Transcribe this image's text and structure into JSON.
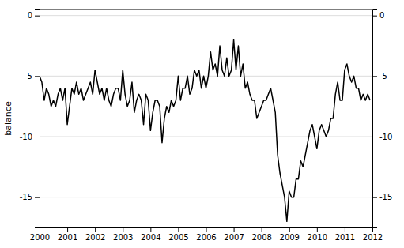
{
  "chart_data": {
    "type": "line",
    "ylabel": "balance",
    "color": "#000000",
    "xlim": [
      2000.0,
      2012.0
    ],
    "ylim": [
      -17.5,
      0.5
    ],
    "xticks": [
      2000,
      2001,
      2002,
      2003,
      2004,
      2005,
      2006,
      2007,
      2008,
      2009,
      2010,
      2011,
      2012
    ],
    "yticks": [
      0,
      -5,
      -10,
      -15
    ],
    "y2lim": [
      -17.5,
      0.5
    ],
    "y2ticks": [
      0,
      -5,
      -10,
      -15
    ],
    "grid": true,
    "x": [
      2000.0,
      2000.083,
      2000.167,
      2000.25,
      2000.333,
      2000.417,
      2000.5,
      2000.583,
      2000.667,
      2000.75,
      2000.833,
      2000.917,
      2001.0,
      2001.083,
      2001.167,
      2001.25,
      2001.333,
      2001.417,
      2001.5,
      2001.583,
      2001.667,
      2001.75,
      2001.833,
      2001.917,
      2002.0,
      2002.083,
      2002.167,
      2002.25,
      2002.333,
      2002.417,
      2002.5,
      2002.583,
      2002.667,
      2002.75,
      2002.833,
      2002.917,
      2003.0,
      2003.083,
      2003.167,
      2003.25,
      2003.333,
      2003.417,
      2003.5,
      2003.583,
      2003.667,
      2003.75,
      2003.833,
      2003.917,
      2004.0,
      2004.083,
      2004.167,
      2004.25,
      2004.333,
      2004.417,
      2004.5,
      2004.583,
      2004.667,
      2004.75,
      2004.833,
      2004.917,
      2005.0,
      2005.083,
      2005.167,
      2005.25,
      2005.333,
      2005.417,
      2005.5,
      2005.583,
      2005.667,
      2005.75,
      2005.833,
      2005.917,
      2006.0,
      2006.083,
      2006.167,
      2006.25,
      2006.333,
      2006.417,
      2006.5,
      2006.583,
      2006.667,
      2006.75,
      2006.833,
      2006.917,
      2007.0,
      2007.083,
      2007.167,
      2007.25,
      2007.333,
      2007.417,
      2007.5,
      2007.583,
      2007.667,
      2007.75,
      2007.833,
      2007.917,
      2008.0,
      2008.083,
      2008.167,
      2008.25,
      2008.333,
      2008.417,
      2008.5,
      2008.583,
      2008.667,
      2008.75,
      2008.833,
      2008.917,
      2009.0,
      2009.083,
      2009.167,
      2009.25,
      2009.333,
      2009.417,
      2009.5,
      2009.583,
      2009.667,
      2009.75,
      2009.833,
      2009.917,
      2010.0,
      2010.083,
      2010.167,
      2010.25,
      2010.333,
      2010.417,
      2010.5,
      2010.583,
      2010.667,
      2010.75,
      2010.833,
      2010.917,
      2011.0,
      2011.083,
      2011.167,
      2011.25,
      2011.333,
      2011.417,
      2011.5,
      2011.583,
      2011.667,
      2011.75,
      2011.833,
      2011.917
    ],
    "values": [
      -5.0,
      -5.5,
      -7.0,
      -6.0,
      -6.5,
      -7.5,
      -7.0,
      -7.5,
      -6.5,
      -6.0,
      -7.0,
      -6.0,
      -9.0,
      -7.5,
      -6.0,
      -6.5,
      -5.5,
      -6.5,
      -6.0,
      -7.0,
      -6.5,
      -6.0,
      -5.5,
      -6.5,
      -4.5,
      -5.5,
      -6.5,
      -6.0,
      -7.0,
      -6.0,
      -7.0,
      -7.5,
      -6.5,
      -6.0,
      -6.0,
      -7.0,
      -4.5,
      -6.5,
      -7.5,
      -7.0,
      -5.5,
      -8.0,
      -7.0,
      -6.5,
      -7.0,
      -9.0,
      -6.5,
      -7.0,
      -9.5,
      -8.0,
      -7.0,
      -7.0,
      -7.5,
      -10.5,
      -8.5,
      -7.5,
      -8.0,
      -7.0,
      -7.5,
      -7.0,
      -5.0,
      -7.0,
      -6.0,
      -6.0,
      -5.0,
      -6.5,
      -6.0,
      -4.5,
      -5.0,
      -4.5,
      -6.0,
      -5.0,
      -6.0,
      -5.0,
      -3.0,
      -4.5,
      -4.0,
      -5.0,
      -2.5,
      -4.5,
      -5.0,
      -3.5,
      -5.0,
      -4.5,
      -2.0,
      -4.5,
      -2.5,
      -5.0,
      -4.0,
      -6.0,
      -5.5,
      -6.5,
      -7.0,
      -7.0,
      -8.5,
      -8.0,
      -7.5,
      -7.0,
      -7.0,
      -6.5,
      -6.0,
      -7.0,
      -8.0,
      -11.5,
      -13.0,
      -14.0,
      -15.0,
      -17.0,
      -14.5,
      -15.0,
      -15.0,
      -13.5,
      -13.5,
      -12.0,
      -12.5,
      -11.5,
      -10.5,
      -9.5,
      -9.0,
      -10.0,
      -11.0,
      -9.5,
      -9.0,
      -9.5,
      -10.0,
      -9.5,
      -8.5,
      -8.5,
      -6.5,
      -5.5,
      -7.0,
      -7.0,
      -4.5,
      -4.0,
      -5.0,
      -5.5,
      -5.0,
      -6.0,
      -6.0,
      -7.0,
      -6.5,
      -7.0,
      -6.5,
      -7.0
    ]
  }
}
